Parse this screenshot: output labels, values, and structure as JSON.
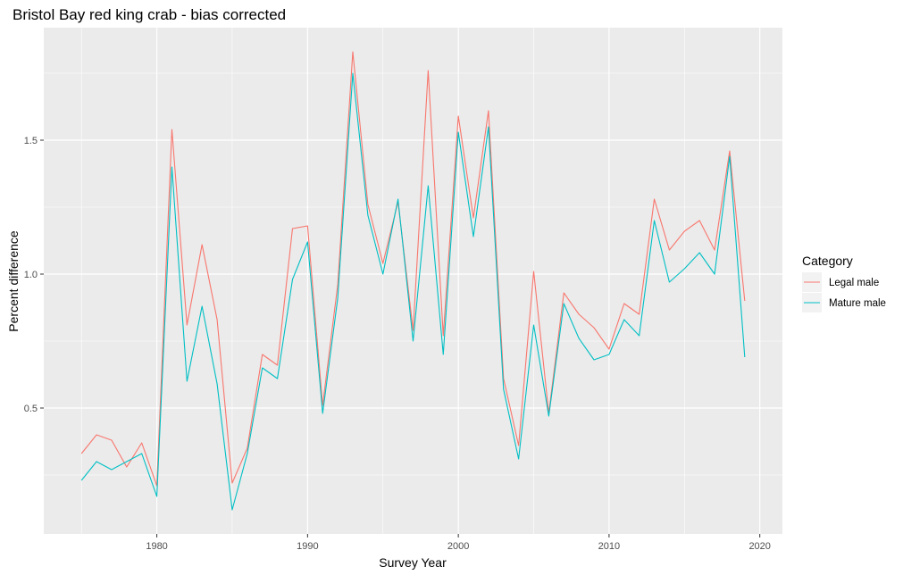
{
  "chart_data": {
    "type": "line",
    "title": "Bristol Bay red king crab - bias corrected",
    "xlabel": "Survey Year",
    "ylabel": "Percent difference",
    "xlim": [
      1972.5,
      2021.5
    ],
    "ylim": [
      0.03,
      1.92
    ],
    "x_ticks": [
      1980,
      1990,
      2000,
      2010,
      2020
    ],
    "x_tick_labels": [
      "1980",
      "1990",
      "2000",
      "2010",
      "2020"
    ],
    "y_ticks": [
      0.5,
      1.0,
      1.5
    ],
    "y_tick_labels": [
      "0.5",
      "1.0",
      "1.5"
    ],
    "grid": true,
    "legend": {
      "title": "Category",
      "position": "right"
    },
    "x": [
      1975,
      1976,
      1977,
      1978,
      1979,
      1980,
      1981,
      1982,
      1983,
      1984,
      1985,
      1986,
      1987,
      1988,
      1989,
      1990,
      1991,
      1992,
      1993,
      1994,
      1995,
      1996,
      1997,
      1998,
      1999,
      2000,
      2001,
      2002,
      2003,
      2004,
      2005,
      2006,
      2007,
      2008,
      2009,
      2010,
      2011,
      2012,
      2013,
      2014,
      2015,
      2016,
      2017,
      2018,
      2019
    ],
    "series": [
      {
        "name": "Legal male",
        "color": "#F8766D",
        "values": [
          0.33,
          0.4,
          0.38,
          0.28,
          0.37,
          0.21,
          1.54,
          0.81,
          1.11,
          0.83,
          0.22,
          0.35,
          0.7,
          0.66,
          1.17,
          1.18,
          0.51,
          0.96,
          1.83,
          1.26,
          1.04,
          1.27,
          0.79,
          1.76,
          0.77,
          1.59,
          1.21,
          1.61,
          0.61,
          0.36,
          1.01,
          0.48,
          0.93,
          0.85,
          0.8,
          0.72,
          0.89,
          0.85,
          1.28,
          1.09,
          1.16,
          1.2,
          1.09,
          1.46,
          0.9
        ]
      },
      {
        "name": "Mature male",
        "color": "#00BFC4",
        "values": [
          0.23,
          0.3,
          0.27,
          0.3,
          0.33,
          0.17,
          1.4,
          0.6,
          0.88,
          0.59,
          0.12,
          0.33,
          0.65,
          0.61,
          0.98,
          1.12,
          0.48,
          0.91,
          1.75,
          1.22,
          1.0,
          1.28,
          0.75,
          1.33,
          0.7,
          1.53,
          1.14,
          1.55,
          0.57,
          0.31,
          0.81,
          0.47,
          0.89,
          0.76,
          0.68,
          0.7,
          0.83,
          0.77,
          1.2,
          0.97,
          1.02,
          1.08,
          1.0,
          1.44,
          0.69
        ]
      }
    ]
  }
}
